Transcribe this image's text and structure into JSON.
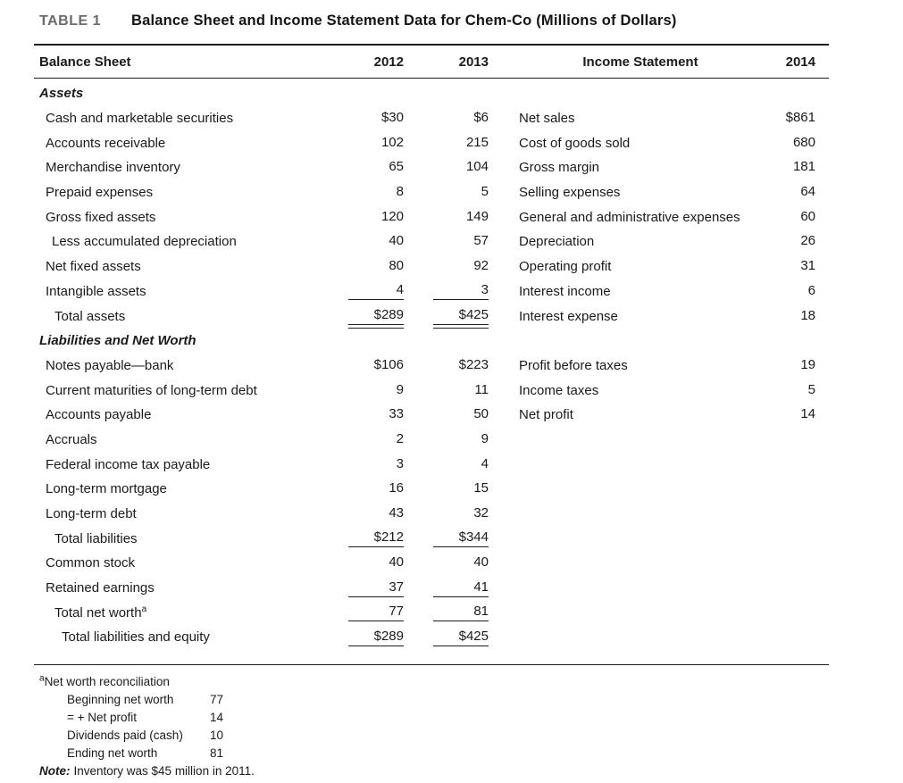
{
  "table_meta": {
    "tag": "TABLE 1",
    "title": "Balance Sheet and Income Statement Data for Chem-Co (Millions of Dollars)"
  },
  "columns": {
    "balance_sheet": "Balance Sheet",
    "y2012": "2012",
    "y2013": "2013",
    "income_statement": "Income Statement",
    "y2014": "2014"
  },
  "rows": [
    {
      "type": "section",
      "indent": 0,
      "label": "Assets"
    },
    {
      "type": "item",
      "indent": 1,
      "label": "Cash and marketable securities",
      "v2012": "$30",
      "v2013": "$6",
      "underline": "none",
      "is_label": "Net sales",
      "v2014": "$861"
    },
    {
      "type": "item",
      "indent": 1,
      "label": "Accounts receivable",
      "v2012": "102",
      "v2013": "215",
      "underline": "none",
      "is_label": "Cost of goods sold",
      "v2014": "680"
    },
    {
      "type": "item",
      "indent": 1,
      "label": "Merchandise inventory",
      "v2012": "65",
      "v2013": "104",
      "underline": "none",
      "is_label": "Gross margin",
      "v2014": "181"
    },
    {
      "type": "item",
      "indent": 1,
      "label": "Prepaid expenses",
      "v2012": "8",
      "v2013": "5",
      "underline": "none",
      "is_label": "Selling expenses",
      "v2014": "64"
    },
    {
      "type": "item",
      "indent": 1,
      "label": "Gross fixed assets",
      "v2012": "120",
      "v2013": "149",
      "underline": "none",
      "is_label": "General and administrative expenses",
      "v2014": "60"
    },
    {
      "type": "item",
      "indent": 2,
      "label": "Less accumulated depreciation",
      "v2012": "40",
      "v2013": "57",
      "underline": "none",
      "is_label": "Depreciation",
      "v2014": "26"
    },
    {
      "type": "item",
      "indent": 1,
      "label": "Net fixed assets",
      "v2012": "80",
      "v2013": "92",
      "underline": "none",
      "is_label": "Operating profit",
      "v2014": "31"
    },
    {
      "type": "item",
      "indent": 1,
      "label": "Intangible assets",
      "v2012": "4",
      "v2013": "3",
      "underline": "single",
      "is_label": "Interest income",
      "v2014": "6"
    },
    {
      "type": "item",
      "indent": 3,
      "label": "Total assets",
      "v2012": "$289",
      "v2013": "$425",
      "underline": "double",
      "is_label": "Interest expense",
      "v2014": "18"
    },
    {
      "type": "section",
      "indent": 0,
      "label": "Liabilities and Net Worth"
    },
    {
      "type": "item",
      "indent": 1,
      "label": "Notes payable—bank",
      "v2012": "$106",
      "v2013": "$223",
      "underline": "none",
      "is_label": "Profit before taxes",
      "v2014": "19"
    },
    {
      "type": "item",
      "indent": 1,
      "label": "Current maturities of long-term debt",
      "v2012": "9",
      "v2013": "11",
      "underline": "none",
      "is_label": "Income taxes",
      "v2014": "5"
    },
    {
      "type": "item",
      "indent": 1,
      "label": "Accounts payable",
      "v2012": "33",
      "v2013": "50",
      "underline": "none",
      "is_label": "Net profit",
      "v2014": "14"
    },
    {
      "type": "item",
      "indent": 1,
      "label": "Accruals",
      "v2012": "2",
      "v2013": "9",
      "underline": "none"
    },
    {
      "type": "item",
      "indent": 1,
      "label": "Federal income tax payable",
      "v2012": "3",
      "v2013": "4",
      "underline": "none"
    },
    {
      "type": "item",
      "indent": 1,
      "label": "Long-term mortgage",
      "v2012": "16",
      "v2013": "15",
      "underline": "none"
    },
    {
      "type": "item",
      "indent": 1,
      "label": "Long-term debt",
      "v2012": "43",
      "v2013": "32",
      "underline": "none"
    },
    {
      "type": "item",
      "indent": 3,
      "label": "Total liabilities",
      "v2012": "$212",
      "v2013": "$344",
      "underline": "single"
    },
    {
      "type": "item",
      "indent": 1,
      "label": "Common stock",
      "v2012": "40",
      "v2013": "40",
      "underline": "none"
    },
    {
      "type": "item",
      "indent": 1,
      "label": "Retained earnings",
      "v2012": "37",
      "v2013": "41",
      "underline": "single"
    },
    {
      "type": "item",
      "indent": 3,
      "label": "Total net worth",
      "sup": "a",
      "v2012": "77",
      "v2013": "81",
      "underline": "single"
    },
    {
      "type": "item",
      "indent": 4,
      "label": "Total liabilities and equity",
      "v2012": "$289",
      "v2013": "$425",
      "underline": "single"
    }
  ],
  "footnote": {
    "marker": "a",
    "title": "Net worth reconciliation",
    "items": [
      {
        "label": "Beginning net worth",
        "value": "77"
      },
      {
        "label": "= + Net profit",
        "value": "14"
      },
      {
        "label": "Dividends paid (cash)",
        "value": "10"
      },
      {
        "label": "Ending net worth",
        "value": "81"
      }
    ],
    "note_label": "Note:",
    "note_text": "Inventory was $45 million in 2011."
  },
  "colors": {
    "table_tag_gray": "#6a6b6e",
    "text": "#1a1a1a",
    "rule": "#1f1f1f",
    "background": "#ffffff"
  }
}
